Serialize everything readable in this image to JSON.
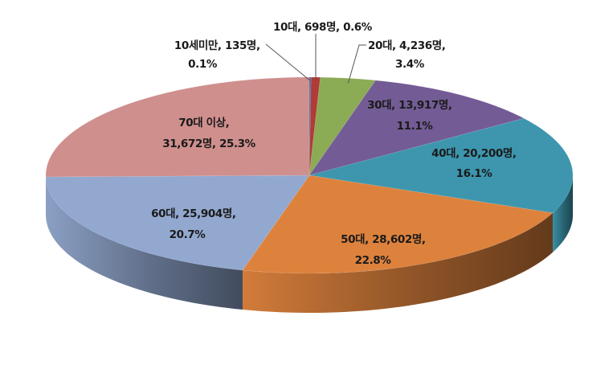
{
  "chart_data": {
    "type": "pie",
    "title": "",
    "slices": [
      {
        "label": "10세미만",
        "count": "135명",
        "percent": "0.1%",
        "value": 135,
        "color": "#4a6ea8"
      },
      {
        "label": "10대",
        "count": "698명",
        "percent": "0.6%",
        "value": 698,
        "color": "#b13b36"
      },
      {
        "label": "20대",
        "count": "4,236명",
        "percent": "3.4%",
        "value": 4236,
        "color": "#8bab55"
      },
      {
        "label": "30대",
        "count": "13,917명",
        "percent": "11.1%",
        "value": 13917,
        "color": "#735c95"
      },
      {
        "label": "40대",
        "count": "20,200명",
        "percent": "16.1%",
        "value": 20200,
        "color": "#3d96ae"
      },
      {
        "label": "50대",
        "count": "28,602명",
        "percent": "22.8%",
        "value": 28602,
        "color": "#dd823d"
      },
      {
        "label": "60대",
        "count": "25,904명",
        "percent": "20.7%",
        "value": 25904,
        "color": "#92a8cf"
      },
      {
        "label": "70대 이상",
        "count": "31,672명",
        "percent": "25.3%",
        "value": 31672,
        "color": "#cf8f8d"
      }
    ]
  }
}
